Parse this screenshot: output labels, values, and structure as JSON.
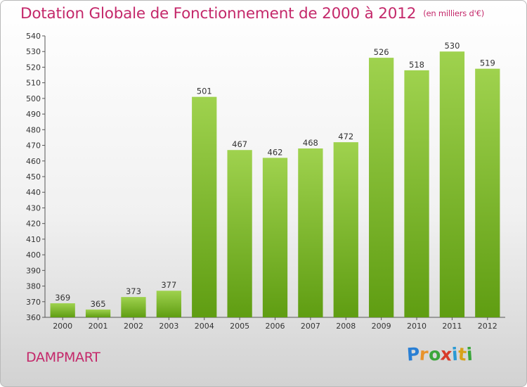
{
  "title": "Dotation Globale de Fonctionnement de 2000 à 2012",
  "unit_label": "(en milliers d'€)",
  "commune": "DAMPMART",
  "logo": {
    "letters": [
      "P",
      "r",
      "o",
      "x",
      "i",
      "t",
      "i"
    ],
    "colors": [
      "#2a7fd4",
      "#e8922a",
      "#3aa63a",
      "#d83a2a",
      "#2a9ad4",
      "#d8a21a",
      "#3aa63a"
    ]
  },
  "colors": {
    "bar_top": "#9fd24e",
    "bar_bottom": "#5f9d12",
    "accent": "#c4286a"
  },
  "chart_data": {
    "type": "bar",
    "categories": [
      "2000",
      "2001",
      "2002",
      "2003",
      "2004",
      "2005",
      "2006",
      "2007",
      "2008",
      "2009",
      "2010",
      "2011",
      "2012"
    ],
    "values": [
      369,
      365,
      373,
      377,
      501,
      467,
      462,
      468,
      472,
      526,
      518,
      530,
      519
    ],
    "title": "Dotation Globale de Fonctionnement de 2000 à 2012",
    "ylim": [
      360,
      540
    ],
    "ytick_step": 10,
    "grid": false,
    "legend": "none"
  }
}
